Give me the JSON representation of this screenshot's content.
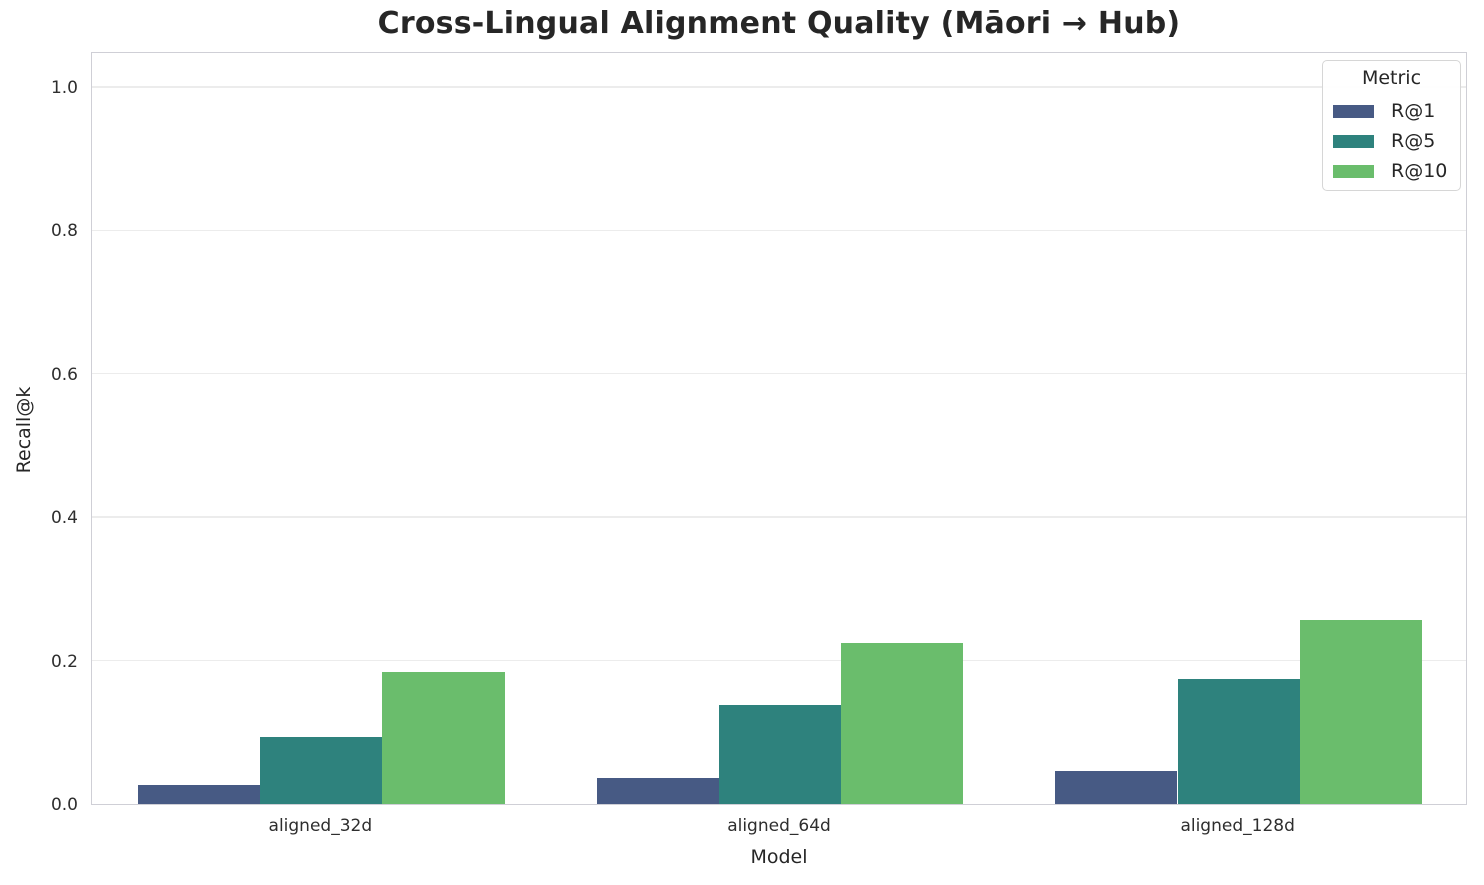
{
  "chart_data": {
    "type": "bar",
    "title": "Cross-Lingual Alignment Quality (Māori → Hub)",
    "xlabel": "Model",
    "ylabel": "Recall@k",
    "legend_title": "Metric",
    "legend_position": "upper right",
    "grid": true,
    "categories": [
      "aligned_32d",
      "aligned_64d",
      "aligned_128d"
    ],
    "series": [
      {
        "name": "R@1",
        "color": "#475a84",
        "values": [
          0.026,
          0.036,
          0.046
        ]
      },
      {
        "name": "R@5",
        "color": "#2e827d",
        "values": [
          0.093,
          0.138,
          0.175
        ]
      },
      {
        "name": "R@10",
        "color": "#6abd6c",
        "values": [
          0.184,
          0.224,
          0.257
        ]
      }
    ],
    "ylim": [
      0,
      1.05
    ],
    "yticks": [
      0.0,
      0.2,
      0.4,
      0.6,
      0.8,
      1.0
    ],
    "ytick_labels": [
      "0.0",
      "0.2",
      "0.4",
      "0.6",
      "0.8",
      "1.0"
    ],
    "bar_group_fraction": 0.8,
    "colors": {
      "text": "#262626",
      "grid": "#ececec",
      "spine": "#cfcfd6",
      "background": "#ffffff"
    }
  }
}
